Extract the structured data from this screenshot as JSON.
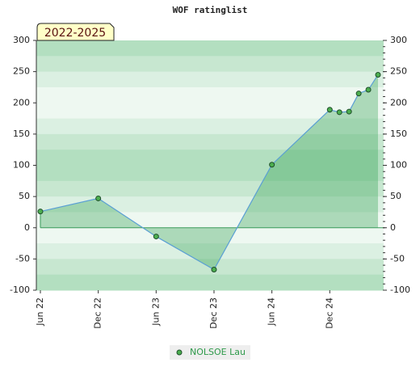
{
  "chart_data": {
    "type": "area-line",
    "title": "WOF ratinglist",
    "annotation": "2022-2025",
    "x": [
      "2022-06",
      "2022-12",
      "2023-06",
      "2023-12",
      "2024-06",
      "2024-12",
      "2025-01",
      "2025-02",
      "2025-03",
      "2025-04",
      "2025-05"
    ],
    "series": [
      {
        "name": "NOLSOE Lau",
        "color": "#5a9fd4",
        "values": [
          26,
          47,
          -14,
          -67,
          101,
          189,
          185,
          186,
          215,
          221,
          245
        ]
      }
    ],
    "xlim": [
      "2022-06",
      "2025-05"
    ],
    "xticks": [
      {
        "value": "2022-06",
        "label": "Jun 22"
      },
      {
        "value": "2022-12",
        "label": "Dec 22"
      },
      {
        "value": "2023-06",
        "label": "Jun 23"
      },
      {
        "value": "2023-12",
        "label": "Dec 23"
      },
      {
        "value": "2024-06",
        "label": "Jun 24"
      },
      {
        "value": "2024-12",
        "label": "Dec 24"
      }
    ],
    "ylim": [
      -100,
      300
    ],
    "yticks": [
      -100,
      -50,
      0,
      50,
      100,
      150,
      200,
      250,
      300
    ]
  }
}
